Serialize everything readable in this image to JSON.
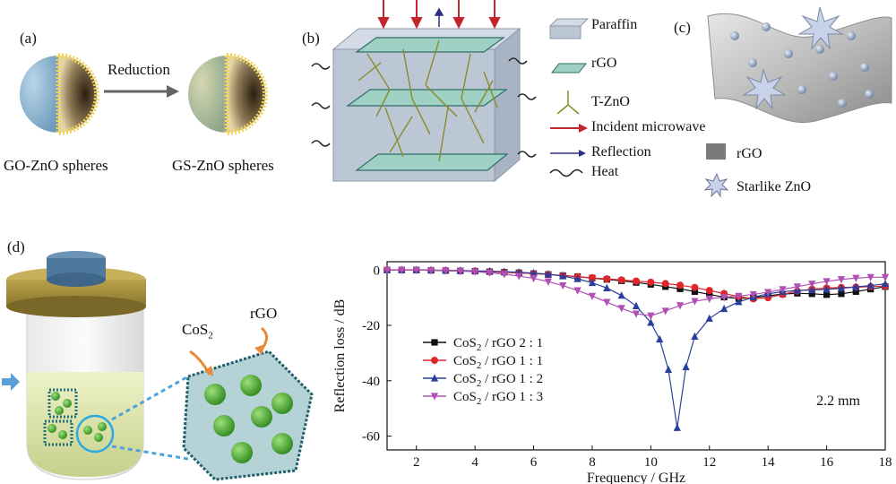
{
  "panels": {
    "a": {
      "label": "(a)",
      "arrow_label": "Reduction",
      "left_caption": "GO-ZnO spheres",
      "right_caption": "GS-ZnO spheres"
    },
    "b": {
      "label": "(b)",
      "legend": [
        {
          "key": "paraffin",
          "text": "Paraffin"
        },
        {
          "key": "rgo",
          "text": "rGO"
        },
        {
          "key": "tzno",
          "text": "T-ZnO"
        },
        {
          "key": "incident",
          "text": "Incident microwave",
          "color": "#c4262e"
        },
        {
          "key": "reflection",
          "text": "Reflection",
          "color": "#2b2f86"
        },
        {
          "key": "heat",
          "text": "Heat"
        }
      ]
    },
    "c": {
      "label": "(c)",
      "legend": [
        {
          "key": "rgo",
          "text": "rGO"
        },
        {
          "key": "starzno",
          "text": "Starlike ZnO"
        }
      ]
    },
    "d": {
      "label": "(d)",
      "cos2_label": "CoS",
      "cos2_sub": "2",
      "rgo_label": "rGO"
    }
  },
  "chart_data": {
    "type": "line",
    "xlabel": "Frequency / GHz",
    "ylabel": "Reflection loss / dB",
    "xlim": [
      1,
      18
    ],
    "ylim": [
      -65,
      3
    ],
    "xticks": [
      2,
      4,
      6,
      8,
      10,
      12,
      14,
      16,
      18
    ],
    "yticks": [
      0,
      -20,
      -40,
      -60
    ],
    "annotation": "2.2 mm",
    "legend_position": "lower-left",
    "series": [
      {
        "name": "CoS2 / rGO 2 : 1",
        "name_parts": [
          "CoS",
          "2",
          " / rGO 2 : 1"
        ],
        "color": "#111111",
        "marker": "square",
        "x": [
          1,
          1.5,
          2,
          2.5,
          3,
          3.5,
          4,
          4.5,
          5,
          5.5,
          6,
          6.5,
          7,
          7.5,
          8,
          8.5,
          9,
          9.5,
          10,
          10.5,
          11,
          11.5,
          12,
          12.5,
          13,
          13.5,
          14,
          14.5,
          15,
          15.5,
          16,
          16.5,
          17,
          17.5,
          18
        ],
        "y": [
          0,
          0,
          0,
          -0.1,
          -0.2,
          -0.3,
          -0.4,
          -0.6,
          -0.8,
          -1.0,
          -1.3,
          -1.6,
          -2.0,
          -2.4,
          -2.9,
          -3.4,
          -3.9,
          -4.5,
          -5.2,
          -6.0,
          -6.8,
          -7.8,
          -8.8,
          -9.8,
          -10.3,
          -10.0,
          -9.3,
          -8.7,
          -8.4,
          -8.6,
          -8.9,
          -8.6,
          -7.8,
          -6.9,
          -6.0
        ]
      },
      {
        "name": "CoS2 / rGO 1 : 1",
        "name_parts": [
          "CoS",
          "2",
          " / rGO 1 : 1"
        ],
        "color": "#e0252b",
        "marker": "circle",
        "x": [
          1,
          1.5,
          2,
          2.5,
          3,
          3.5,
          4,
          4.5,
          5,
          5.5,
          6,
          6.5,
          7,
          7.5,
          8,
          8.5,
          9,
          9.5,
          10,
          10.5,
          11,
          11.5,
          12,
          12.5,
          13,
          13.5,
          14,
          14.5,
          15,
          15.5,
          16,
          16.5,
          17,
          17.5,
          18
        ],
        "y": [
          0,
          0,
          0,
          -0.1,
          -0.2,
          -0.3,
          -0.4,
          -0.6,
          -0.8,
          -1.0,
          -1.3,
          -1.6,
          -2.0,
          -2.4,
          -2.8,
          -3.2,
          -3.6,
          -4.0,
          -4.4,
          -4.9,
          -5.5,
          -6.3,
          -7.4,
          -8.5,
          -9.6,
          -10.4,
          -10.0,
          -8.8,
          -7.6,
          -6.9,
          -6.5,
          -6.3,
          -6.2,
          -6.0,
          -5.8
        ]
      },
      {
        "name": "CoS2 / rGO 1 : 2",
        "name_parts": [
          "CoS",
          "2",
          " / rGO 1 : 2"
        ],
        "color": "#2a3f9b",
        "marker": "triangle-up",
        "x": [
          1,
          1.5,
          2,
          2.5,
          3,
          3.5,
          4,
          4.5,
          5,
          5.5,
          6,
          6.5,
          7,
          7.5,
          8,
          8.5,
          9,
          9.5,
          10,
          10.3,
          10.6,
          10.9,
          11.2,
          11.5,
          12,
          12.5,
          13,
          13.5,
          14,
          14.5,
          15,
          15.5,
          16,
          16.5,
          17,
          17.5,
          18
        ],
        "y": [
          0,
          0,
          0,
          0,
          -0.1,
          -0.2,
          -0.3,
          -0.4,
          -0.6,
          -0.8,
          -1.1,
          -1.5,
          -2.2,
          -3.2,
          -4.6,
          -6.5,
          -9.2,
          -13.0,
          -19.0,
          -25.0,
          -36.0,
          -57.0,
          -35.0,
          -24.0,
          -17.5,
          -14.0,
          -11.5,
          -9.8,
          -8.6,
          -7.8,
          -7.4,
          -7.2,
          -7.0,
          -6.6,
          -6.1,
          -5.6,
          -5.0
        ]
      },
      {
        "name": "CoS2 / rGO 1 : 3",
        "name_parts": [
          "CoS",
          "2",
          " / rGO 1 : 3"
        ],
        "color": "#b04fb4",
        "marker": "triangle-down",
        "x": [
          1,
          1.5,
          2,
          2.5,
          3,
          3.5,
          4,
          4.5,
          5,
          5.5,
          6,
          6.5,
          7,
          7.5,
          8,
          8.5,
          9,
          9.5,
          10,
          10.5,
          11,
          11.5,
          12,
          12.5,
          13,
          13.5,
          14,
          14.5,
          15,
          15.5,
          16,
          16.5,
          17,
          17.5,
          18
        ],
        "y": [
          0,
          0,
          0,
          -0.1,
          -0.2,
          -0.4,
          -0.6,
          -1.0,
          -1.5,
          -2.2,
          -3.0,
          -4.2,
          -5.6,
          -7.4,
          -9.4,
          -11.6,
          -13.8,
          -15.8,
          -16.5,
          -14.8,
          -12.8,
          -11.3,
          -10.4,
          -9.8,
          -9.4,
          -8.8,
          -8.0,
          -7.0,
          -6.0,
          -5.0,
          -4.1,
          -3.4,
          -2.9,
          -2.6,
          -2.6
        ]
      }
    ]
  }
}
